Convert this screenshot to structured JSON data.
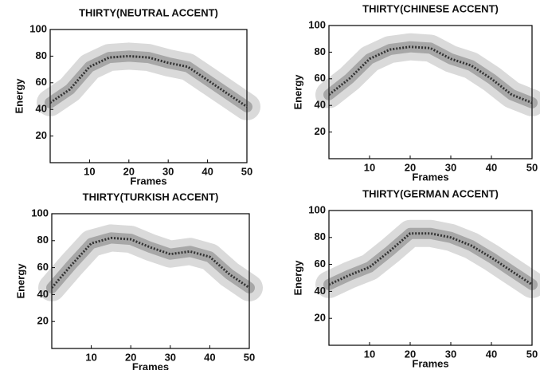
{
  "chart_data": [
    {
      "type": "density",
      "title": "THIRTY(NEUTRAL ACCENT)",
      "x_label": "Frames",
      "y_label": "Energy",
      "x": [
        0,
        5,
        10,
        15,
        20,
        25,
        30,
        35,
        40,
        45,
        50
      ],
      "series": [
        {
          "color": "#333333",
          "values": [
            45,
            55,
            72,
            79,
            80,
            79,
            75,
            72,
            62,
            52,
            42
          ]
        }
      ],
      "xlim": [
        0,
        50
      ],
      "ylim": [
        0,
        100
      ],
      "xticks": [
        10,
        20,
        30,
        40,
        50
      ],
      "yticks": [
        20,
        40,
        60,
        80,
        100
      ]
    },
    {
      "type": "density",
      "title": "THIRTY(CHINESE ACCENT)",
      "x_label": "Frames",
      "y_label": "Energy",
      "x": [
        0,
        5,
        10,
        15,
        20,
        25,
        30,
        35,
        40,
        45,
        50
      ],
      "series": [
        {
          "color": "#333333",
          "values": [
            48,
            60,
            75,
            82,
            84,
            83,
            75,
            70,
            60,
            48,
            42
          ]
        }
      ],
      "xlim": [
        0,
        50
      ],
      "ylim": [
        0,
        100
      ],
      "xticks": [
        10,
        20,
        30,
        40,
        50
      ],
      "yticks": [
        20,
        40,
        60,
        80,
        100
      ]
    },
    {
      "type": "density",
      "title": "THIRTY(TURKISH ACCENT)",
      "x_label": "Frames",
      "y_label": "Energy",
      "x": [
        0,
        5,
        10,
        15,
        20,
        25,
        30,
        35,
        40,
        45,
        50
      ],
      "series": [
        {
          "color": "#333333",
          "values": [
            45,
            62,
            78,
            82,
            81,
            75,
            70,
            72,
            68,
            55,
            45
          ]
        }
      ],
      "xlim": [
        0,
        50
      ],
      "ylim": [
        0,
        100
      ],
      "xticks": [
        10,
        20,
        30,
        40,
        50
      ],
      "yticks": [
        20,
        40,
        60,
        80,
        100
      ]
    },
    {
      "type": "density",
      "title": "THIRTY(GERMAN ACCENT)",
      "x_label": "Frames",
      "y_label": "Energy",
      "x": [
        0,
        5,
        10,
        15,
        20,
        25,
        30,
        35,
        40,
        45,
        50
      ],
      "series": [
        {
          "color": "#333333",
          "values": [
            45,
            52,
            58,
            70,
            83,
            83,
            80,
            74,
            65,
            55,
            45
          ]
        }
      ],
      "xlim": [
        0,
        50
      ],
      "ylim": [
        0,
        100
      ],
      "xticks": [
        10,
        20,
        30,
        40,
        50
      ],
      "yticks": [
        20,
        40,
        60,
        80,
        100
      ]
    }
  ]
}
